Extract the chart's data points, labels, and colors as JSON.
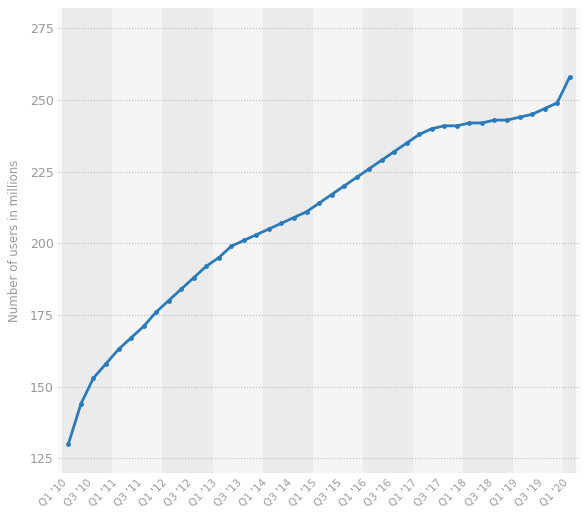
{
  "values": [
    130,
    144,
    153,
    158,
    163,
    167,
    171,
    176,
    180,
    184,
    188,
    192,
    195,
    199,
    201,
    203,
    205,
    207,
    209,
    211,
    214,
    217,
    220,
    223,
    226,
    229,
    232,
    235,
    238,
    240,
    241,
    241,
    242,
    242,
    243,
    243,
    244,
    245,
    247,
    249,
    258
  ],
  "n_points": 41,
  "x_tick_positions": [
    0,
    2,
    4,
    6,
    8,
    10,
    12,
    14,
    16,
    18,
    20,
    22,
    24,
    26,
    28,
    30,
    32,
    34,
    36,
    38,
    40
  ],
  "x_tick_labels": [
    "Q1 '10",
    "Q3 '10",
    "Q1 '11",
    "Q3 '11",
    "Q1 '12",
    "Q3 '12",
    "Q1 '13",
    "Q3 '13",
    "Q1 '14",
    "Q3 '14",
    "Q1 '15",
    "Q3 '15",
    "Q1 '16",
    "Q3 '16",
    "Q1 '17",
    "Q3 '17",
    "Q1 '18",
    "Q3 '18",
    "Q1 '19",
    "Q3 '19",
    "Q1 '20"
  ],
  "yticks": [
    125,
    150,
    175,
    200,
    225,
    250,
    275
  ],
  "ylim": [
    120,
    282
  ],
  "xlim": [
    -0.8,
    40.8
  ],
  "line_color": "#2b7bba",
  "marker_color": "#2b7bba",
  "bg_color_light": "#f0f0f0",
  "bg_color_white": "#fafafa",
  "grid_color": "#bbbbbb",
  "ylabel": "Number of users in millions",
  "tick_label_color": "#999999",
  "marker_size": 3.5,
  "line_width": 2.0,
  "figsize": [
    5.88,
    5.17
  ],
  "dpi": 100
}
